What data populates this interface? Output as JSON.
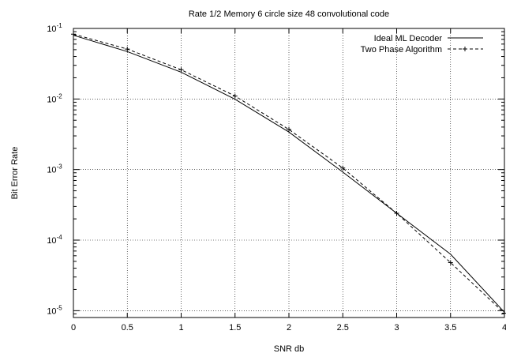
{
  "chart_data": {
    "type": "line",
    "title": "Rate 1/2 Memory 6 circle size 48 convolutional code",
    "xlabel": "SNR db",
    "ylabel": "Bit Error Rate",
    "xlim": [
      0,
      4
    ],
    "ylim": [
      8e-06,
      0.1
    ],
    "yscale": "log",
    "grid": true,
    "legend": "top-right",
    "x_ticks": [
      "0",
      "0.5",
      "1",
      "1.5",
      "2",
      "2.5",
      "3",
      "3.5",
      "4"
    ],
    "y_ticks": [
      {
        "base": "10",
        "exp": "-1"
      },
      {
        "base": "10",
        "exp": "-2"
      },
      {
        "base": "10",
        "exp": "-3"
      },
      {
        "base": "10",
        "exp": "-4"
      },
      {
        "base": "10",
        "exp": "-5"
      }
    ],
    "series": [
      {
        "name": "Ideal ML Decoder",
        "style": "solid",
        "color": "#000000",
        "x": [
          0,
          0.5,
          1,
          1.5,
          2,
          2.5,
          3,
          3.5,
          4
        ],
        "y": [
          0.08,
          0.047,
          0.024,
          0.0099,
          0.0034,
          0.00092,
          0.00024,
          6.3e-05,
          9.5e-06
        ]
      },
      {
        "name": "Two Phase Algorithm",
        "style": "dashed",
        "marker": "plus",
        "color": "#000000",
        "x": [
          0,
          0.5,
          1,
          1.5,
          2,
          2.5,
          3,
          3.5,
          4
        ],
        "y": [
          0.083,
          0.051,
          0.026,
          0.011,
          0.0037,
          0.00105,
          0.00024,
          4.8e-05,
          9.2e-06
        ]
      }
    ]
  }
}
